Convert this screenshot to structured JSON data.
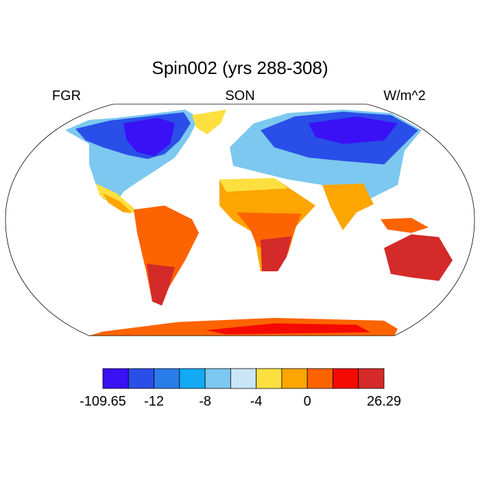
{
  "title": "Spin002 (yrs 288-308)",
  "left_label": "FGR",
  "center_label": "SON",
  "right_label": "W/m^2",
  "colorbar": {
    "colors": [
      "#3a10f5",
      "#2a4ee8",
      "#2a7ce8",
      "#12aaf5",
      "#7dc8f0",
      "#c8e6f8",
      "#fde040",
      "#fda500",
      "#fd6400",
      "#f50a00",
      "#d42a2a"
    ],
    "levels": [
      -109.65,
      null,
      -12,
      null,
      -8,
      null,
      -4,
      null,
      0,
      null,
      null,
      26.29
    ]
  }
}
